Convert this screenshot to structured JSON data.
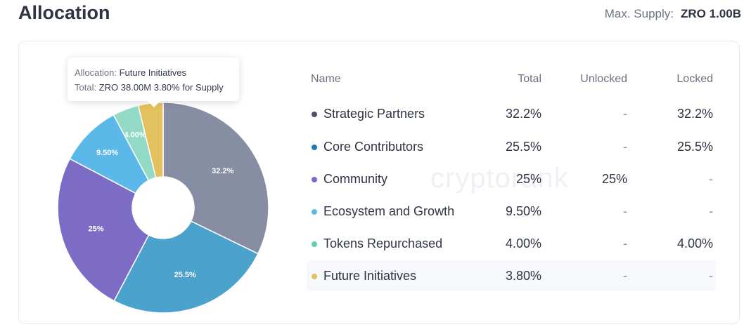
{
  "header": {
    "title": "Allocation",
    "supply_label": "Max. Supply:",
    "supply_value": "ZRO 1.00B"
  },
  "watermark": "cryptorank",
  "tooltip": {
    "line1_key": "Allocation:",
    "line1_val": "Future Initiatives",
    "line2_key": "Total:",
    "line2_val": "ZRO 38.00M 3.80% for Supply"
  },
  "table": {
    "headers": {
      "name": "Name",
      "total": "Total",
      "unlocked": "Unlocked",
      "locked": "Locked"
    },
    "rows": [
      {
        "name": "Strategic Partners",
        "total": "32.2%",
        "unlocked": "-",
        "locked": "32.2%"
      },
      {
        "name": "Core Contributors",
        "total": "25.5%",
        "unlocked": "-",
        "locked": "25.5%"
      },
      {
        "name": "Community",
        "total": "25%",
        "unlocked": "25%",
        "locked": "-"
      },
      {
        "name": "Ecosystem and Growth",
        "total": "9.50%",
        "unlocked": "-",
        "locked": "-"
      },
      {
        "name": "Tokens Repurchased",
        "total": "4.00%",
        "unlocked": "-",
        "locked": "4.00%"
      },
      {
        "name": "Future Initiatives",
        "total": "3.80%",
        "unlocked": "-",
        "locked": "-"
      }
    ]
  },
  "chart_data": {
    "type": "pie",
    "donut": true,
    "categories": [
      "Strategic Partners",
      "Core Contributors",
      "Community",
      "Ecosystem and Growth",
      "Tokens Repurchased",
      "Future Initiatives"
    ],
    "values": [
      32.2,
      25.5,
      25,
      9.5,
      4.0,
      3.8
    ],
    "slice_labels": [
      "32.2%",
      "25.5%",
      "25%",
      "9.50%",
      "4.00%",
      ""
    ],
    "colors": [
      "#878ea3",
      "#4aa2cd",
      "#7c6cc6",
      "#5db8ea",
      "#93dac6",
      "#e3c15e"
    ],
    "legend_dot_colors": [
      "#4a5068",
      "#1f78b4",
      "#7c6cc6",
      "#5db8ea",
      "#5fd0ae",
      "#e3c15e"
    ],
    "highlighted": "Future Initiatives"
  }
}
